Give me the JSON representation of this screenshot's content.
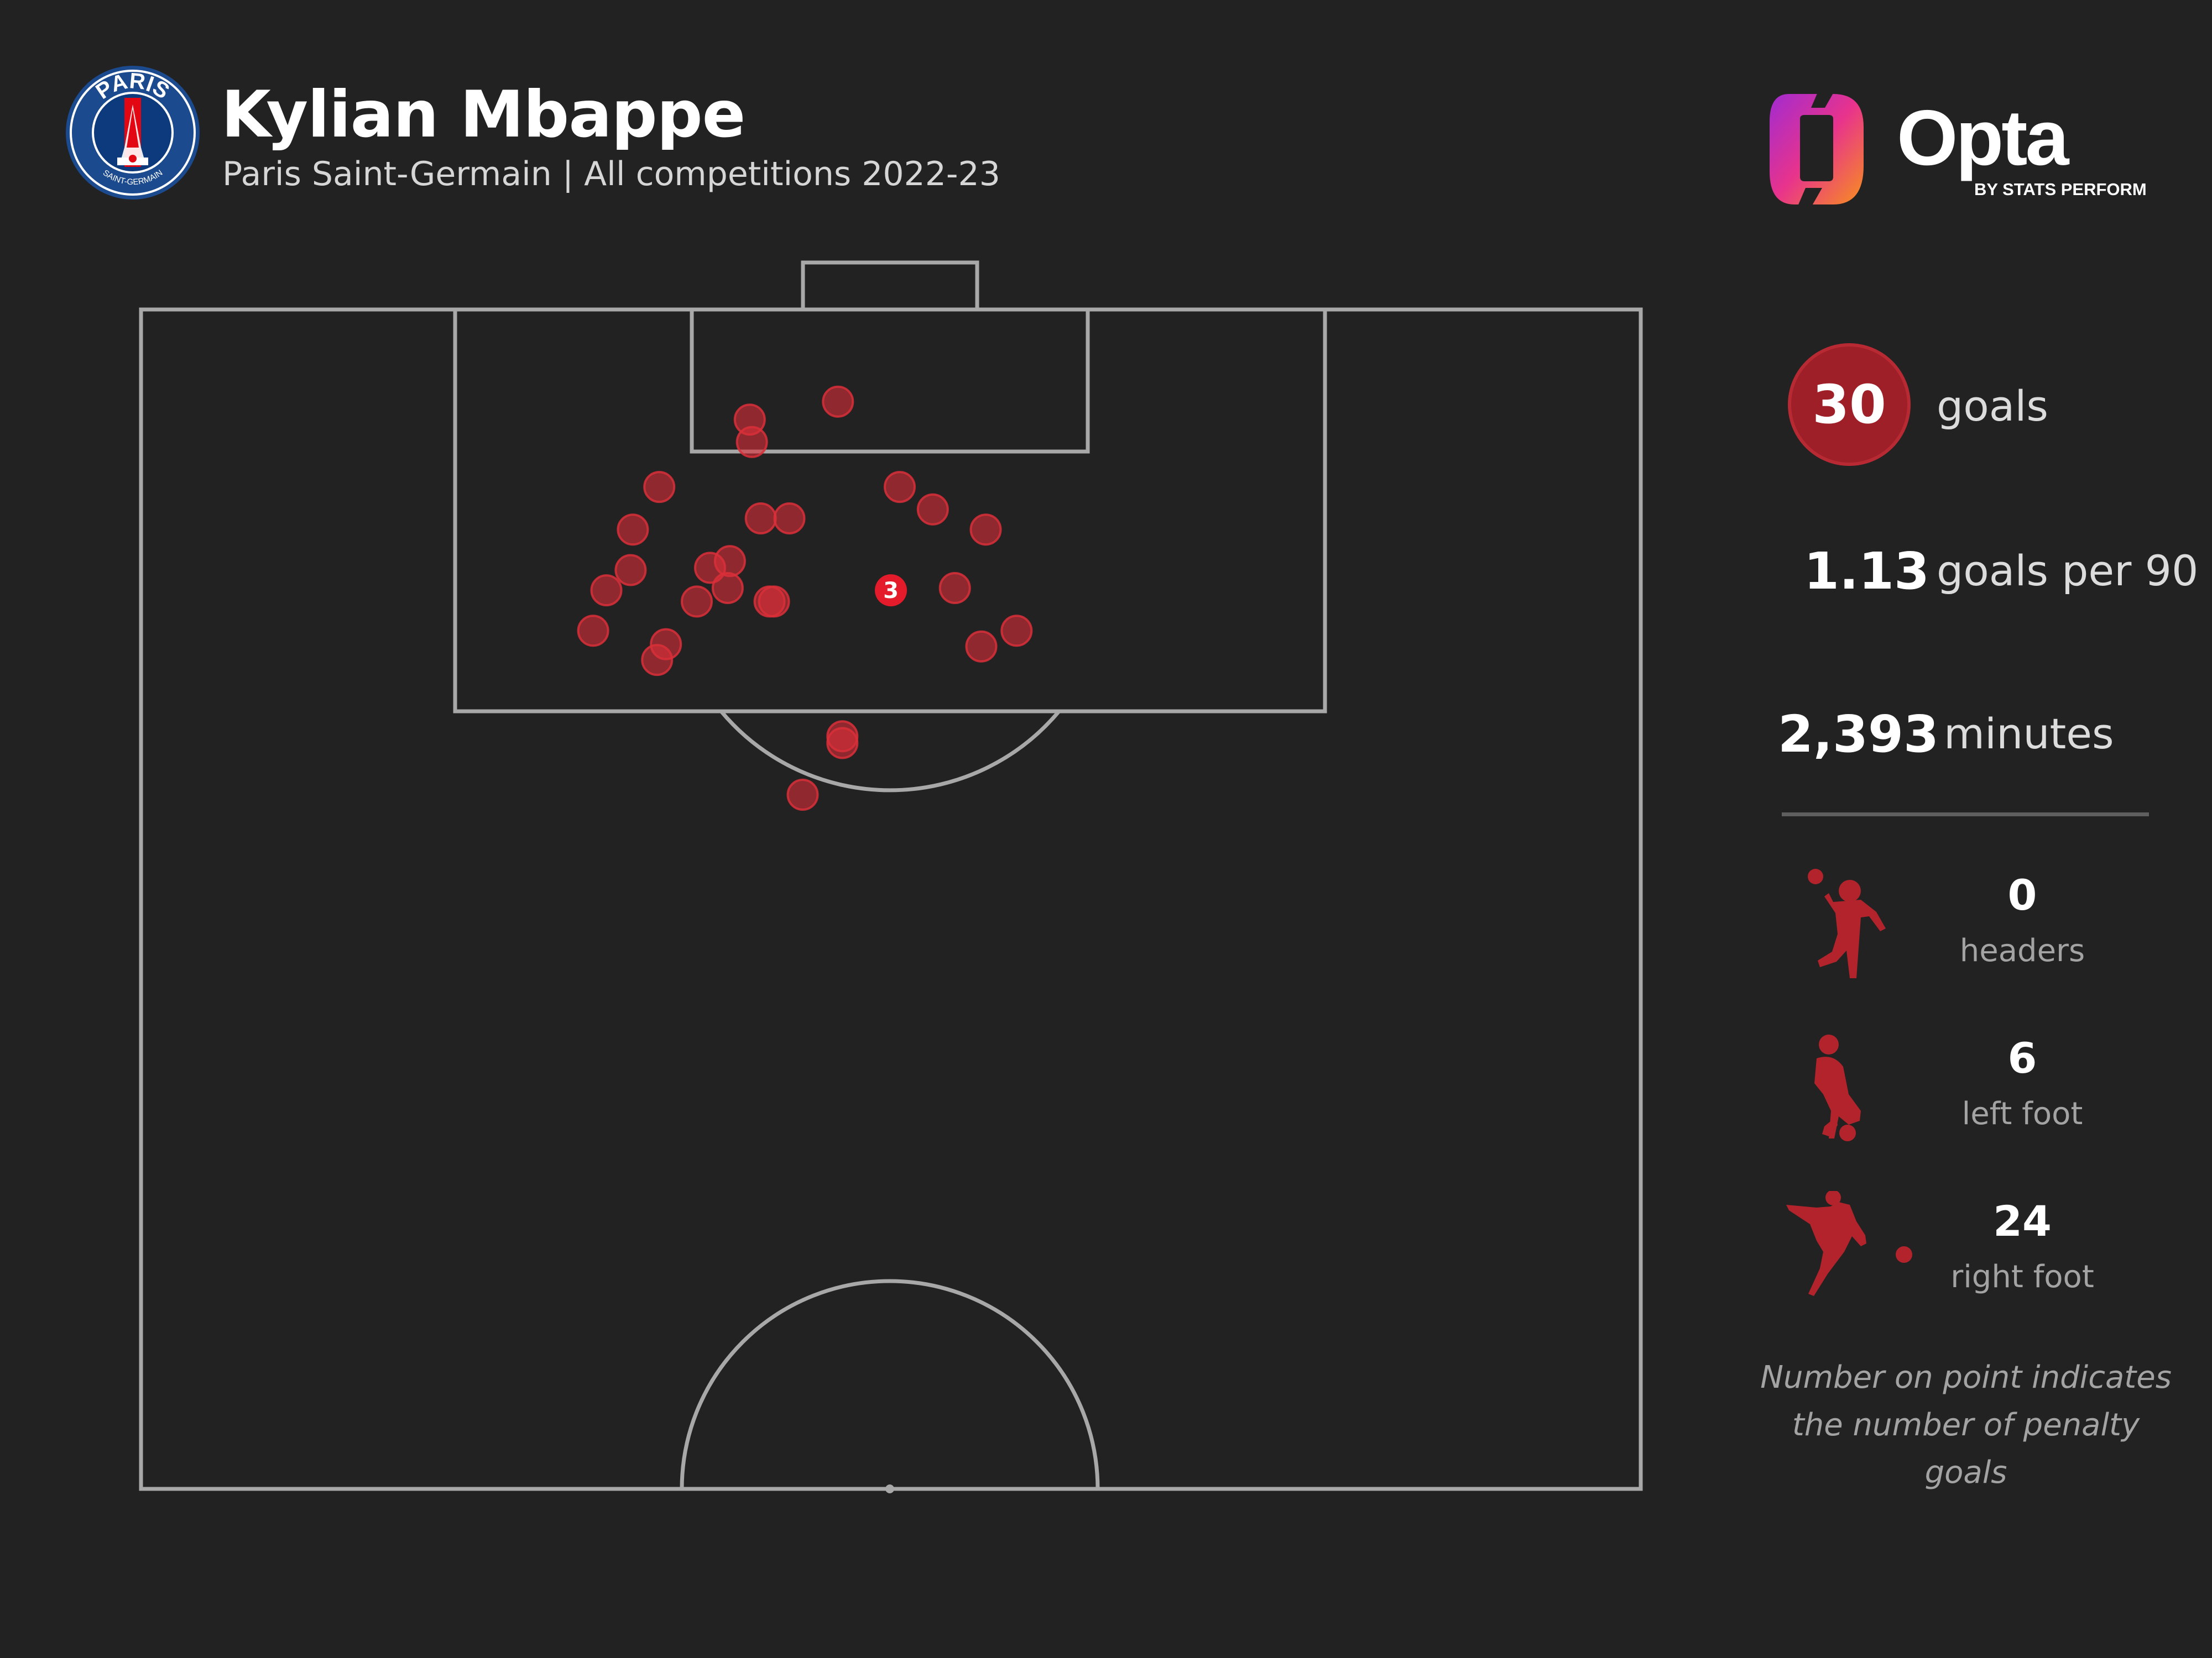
{
  "header": {
    "title": "Kylian Mbappe",
    "subtitle": "Paris Saint-Germain | All competitions 2022-23"
  },
  "crest": {
    "top_text": "PARIS",
    "bottom_text": "SAINT-GERMAIN"
  },
  "logo": {
    "name": "Opta",
    "tagline": "BY STATS PERFORM"
  },
  "stats": {
    "goals_value": "30",
    "goals_label": "goals",
    "per90_value": "1.13",
    "per90_label": "goals per 90",
    "minutes_value": "2,393",
    "minutes_label": "minutes"
  },
  "body_parts": [
    {
      "value": "0",
      "label": "headers",
      "icon": "header-icon"
    },
    {
      "value": "6",
      "label": "left foot",
      "icon": "left-foot-icon"
    },
    {
      "value": "24",
      "label": "right foot",
      "icon": "right-foot-icon"
    }
  ],
  "note": [
    "Number on point indicates",
    "the number of penalty goals"
  ],
  "colors": {
    "background": "#222222",
    "goal_marker": "#d92f38",
    "accent": "#9e1f27",
    "pitch_lines": "#a8a8a8"
  },
  "chart_data": {
    "type": "scatter",
    "title": "",
    "xlabel": "",
    "ylabel": "",
    "description_units": "pitch coordinates in metres: x across the pitch from left touchline (0-68), y distance from goal line (0-52.5)",
    "xlim": [
      0,
      68
    ],
    "ylim": [
      0,
      52.5
    ],
    "series": [
      {
        "name": "",
        "points": [
          {
            "x": 31.6,
            "y": 4.1
          },
          {
            "x": 27.6,
            "y": 4.9
          },
          {
            "x": 27.7,
            "y": 5.9
          },
          {
            "x": 23.5,
            "y": 7.9
          },
          {
            "x": 34.4,
            "y": 7.9
          },
          {
            "x": 35.9,
            "y": 8.9
          },
          {
            "x": 28.1,
            "y": 9.3
          },
          {
            "x": 29.4,
            "y": 9.3
          },
          {
            "x": 22.3,
            "y": 9.8
          },
          {
            "x": 38.3,
            "y": 9.8
          },
          {
            "x": 25.8,
            "y": 11.5
          },
          {
            "x": 26.7,
            "y": 11.2
          },
          {
            "x": 22.2,
            "y": 11.6
          },
          {
            "x": 21.1,
            "y": 12.5
          },
          {
            "x": 26.6,
            "y": 12.4
          },
          {
            "x": 36.9,
            "y": 12.4
          },
          {
            "x": 25.2,
            "y": 13.0
          },
          {
            "x": 28.5,
            "y": 13.0
          },
          {
            "x": 28.7,
            "y": 13.0
          },
          {
            "x": 20.5,
            "y": 14.3
          },
          {
            "x": 39.7,
            "y": 14.3
          },
          {
            "x": 23.8,
            "y": 14.9
          },
          {
            "x": 38.1,
            "y": 15.0
          },
          {
            "x": 23.4,
            "y": 15.6
          },
          {
            "x": 31.8,
            "y": 19.0
          },
          {
            "x": 31.8,
            "y": 19.3
          },
          {
            "x": 30.0,
            "y": 21.6
          },
          {
            "x": 34.0,
            "y": 12.5,
            "penalty_goals": 3
          }
        ]
      }
    ],
    "grid": false,
    "legend": "none"
  }
}
